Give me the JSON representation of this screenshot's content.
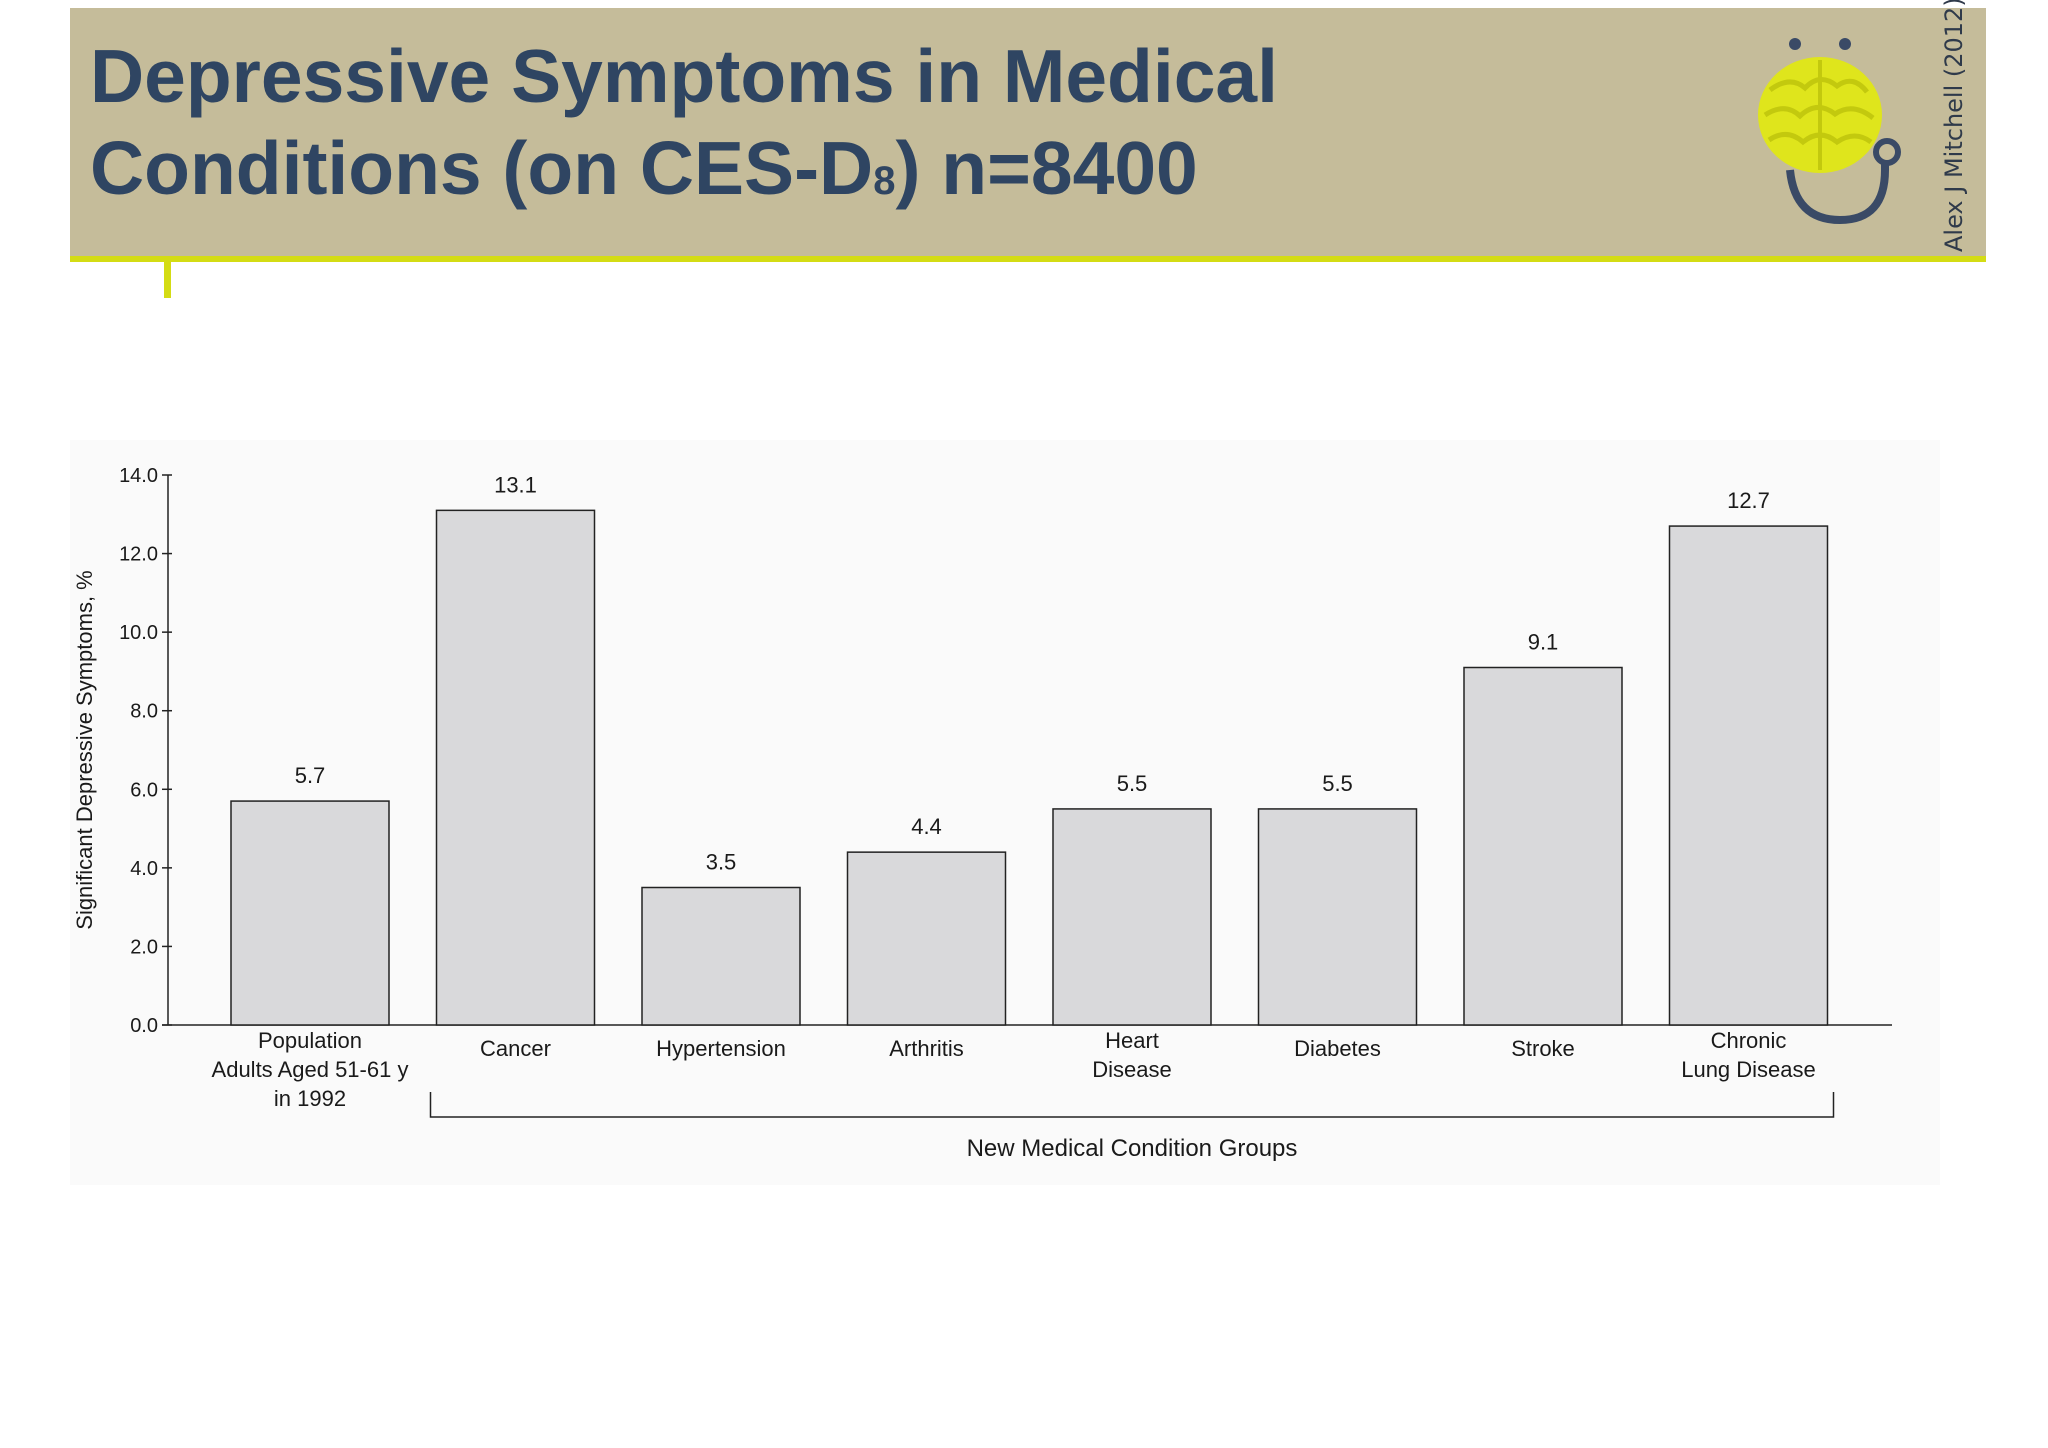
{
  "slide": {
    "title_main": "Depressive Symptoms in Medical Conditions (on CES-D",
    "title_sub": "8",
    "title_end": ") n=8400",
    "credit": "Alex J Mitchell (2012)",
    "colors": {
      "header": "#c5bc9a",
      "accent": "#d4dc14",
      "title": "#2f4562"
    },
    "logo_icon": "brain-stethoscope-icon"
  },
  "chart_data": {
    "type": "bar",
    "categories": [
      [
        "Population",
        "Adults Aged 51-61 y",
        "in 1992"
      ],
      [
        "Cancer"
      ],
      [
        "Hypertension"
      ],
      [
        "Arthritis"
      ],
      [
        "Heart",
        "Disease"
      ],
      [
        "Diabetes"
      ],
      [
        "Stroke"
      ],
      [
        "Chronic",
        "Lung Disease"
      ]
    ],
    "values": [
      5.7,
      13.1,
      3.5,
      4.4,
      5.5,
      5.5,
      9.1,
      12.7
    ],
    "value_labels": [
      "5.7",
      "13.1",
      "3.5",
      "4.4",
      "5.5",
      "5.5",
      "9.1",
      "12.7"
    ],
    "ylabel": "Significant Depressive Symptoms, %",
    "ylim": [
      0,
      14
    ],
    "yticks": [
      "0.0",
      "2.0",
      "4.0",
      "6.0",
      "8.0",
      "10.0",
      "12.0",
      "14.0"
    ],
    "group_label": "New Medical Condition Groups",
    "group_span": [
      1,
      7
    ],
    "bar_color": "#d9d9db",
    "grid": false
  }
}
